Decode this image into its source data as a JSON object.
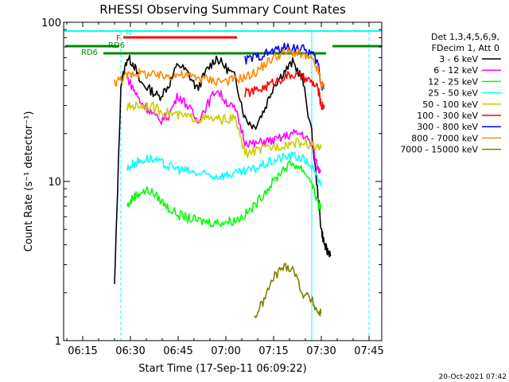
{
  "chart_data": {
    "type": "line",
    "title": "RHESSI Observing Summary Count Rates",
    "xlabel": "Start Time (17-Sep-11 06:09:22)",
    "ylabel": "Count Rate (s⁻¹ detector⁻¹)",
    "y_scale": "log",
    "ylim": [
      1,
      100
    ],
    "xlim": [
      "06:09",
      "07:49"
    ],
    "x_ticks": [
      "06:15",
      "06:30",
      "06:45",
      "07:00",
      "07:15",
      "07:30",
      "07:45"
    ],
    "y_ticks": [
      "1",
      "10",
      "100"
    ],
    "legend_placement": "right",
    "legend_header": [
      "Det 1,3,4,5,6,9,",
      "FDecim 1, Att 0"
    ],
    "x": [
      "06:25",
      "06:27",
      "06:29",
      "06:31",
      "06:33",
      "06:36",
      "06:39",
      "06:42",
      "06:45",
      "06:48",
      "06:51",
      "06:54",
      "06:57",
      "07:00",
      "07:03",
      "07:06",
      "07:09",
      "07:12",
      "07:15",
      "07:18",
      "07:21",
      "07:24",
      "07:27",
      "07:29",
      "07:30",
      "07:31",
      "07:32"
    ],
    "series": [
      {
        "name": "3 - 6 keV",
        "color": "#000000",
        "values": [
          2.2,
          40,
          60,
          55,
          42,
          38,
          34,
          40,
          55,
          48,
          38,
          50,
          60,
          52,
          45,
          25,
          22,
          28,
          40,
          48,
          56,
          45,
          20,
          8,
          5,
          4,
          3.6
        ]
      },
      {
        "name": "6 - 12 keV",
        "color": "#ff00ff",
        "values": [
          null,
          null,
          45,
          38,
          32,
          28,
          24,
          26,
          35,
          30,
          24,
          30,
          38,
          32,
          28,
          18,
          17,
          18,
          18,
          19,
          20,
          20,
          17,
          12,
          null,
          null,
          null
        ]
      },
      {
        "name": "12 - 25 keV",
        "color": "#00ff00",
        "values": [
          null,
          null,
          7.0,
          8.0,
          8.5,
          8.8,
          7.8,
          6.8,
          6.2,
          5.9,
          5.7,
          5.6,
          5.5,
          5.6,
          5.7,
          6.2,
          7.0,
          8.5,
          10,
          12,
          13,
          12,
          10,
          7,
          null,
          null,
          null
        ]
      },
      {
        "name": "25 - 50 keV",
        "color": "#00ffff",
        "values": [
          null,
          null,
          12,
          13,
          13.5,
          14,
          13.2,
          12.5,
          12,
          11.6,
          11.2,
          11,
          10.8,
          11,
          11.2,
          11.5,
          12,
          12.8,
          13.5,
          14.2,
          14.5,
          14,
          12.5,
          10,
          null,
          null,
          null
        ]
      },
      {
        "name": "50 - 100 keV",
        "color": "#cccc00",
        "values": [
          null,
          null,
          29,
          30,
          30,
          30,
          28,
          27,
          26,
          25.5,
          25,
          24.8,
          24.5,
          24.6,
          24.8,
          15,
          15.5,
          16,
          16.5,
          17,
          17.5,
          17.5,
          17,
          16,
          null,
          null,
          null
        ]
      },
      {
        "name": "100 - 300 keV",
        "color": "#ff0000",
        "values": [
          null,
          null,
          null,
          null,
          null,
          null,
          null,
          null,
          null,
          null,
          null,
          null,
          null,
          null,
          null,
          36,
          37,
          39,
          42,
          45,
          47,
          45,
          42,
          38,
          30,
          null,
          null
        ]
      },
      {
        "name": "300 - 800 keV",
        "color": "#0000ff",
        "values": [
          null,
          null,
          null,
          null,
          null,
          null,
          null,
          null,
          null,
          null,
          null,
          null,
          null,
          null,
          null,
          58,
          60,
          63,
          66,
          69,
          70,
          68,
          64,
          55,
          40,
          null,
          null
        ]
      },
      {
        "name": "800 - 7000 keV",
        "color": "#ff8800",
        "values": [
          42,
          44,
          46,
          48,
          48,
          47,
          46,
          46,
          47,
          46,
          45,
          44,
          43,
          43,
          44,
          45,
          48,
          54,
          60,
          64,
          65,
          62,
          58,
          50,
          40,
          null,
          null
        ]
      },
      {
        "name": "7000 - 15000 keV",
        "color": "#808000",
        "values": [
          null,
          null,
          null,
          null,
          null,
          null,
          null,
          null,
          null,
          null,
          null,
          null,
          null,
          null,
          null,
          null,
          1.4,
          1.8,
          2.5,
          2.9,
          2.9,
          2.0,
          1.8,
          1.5,
          null,
          null,
          null
        ]
      }
    ],
    "annotations": [
      {
        "label": "N",
        "color": "#00ffff"
      },
      {
        "label": "F",
        "color": "#ff0000"
      },
      {
        "label": "RD6",
        "color": "#008800"
      },
      {
        "label": "RD6",
        "color": "#008800"
      }
    ],
    "footer_date": "20-Oct-2021 07:42"
  }
}
